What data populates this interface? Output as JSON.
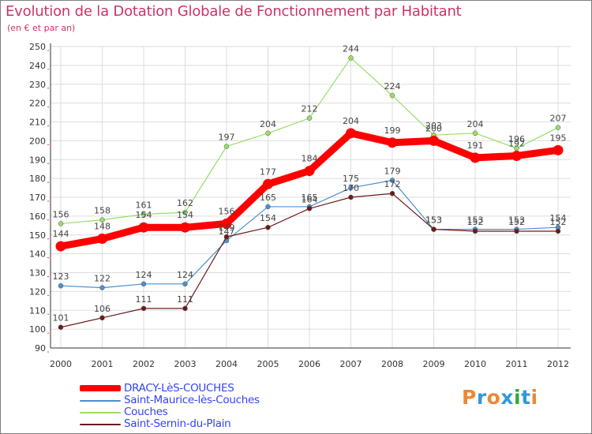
{
  "title": "Evolution de la Dotation Globale de Fonctionnement par Habitant",
  "subtitle": "(en € et par an)",
  "logo": {
    "text": "Proxiti",
    "colors": [
      "#ee8833",
      "#3399dd",
      "#ee8833",
      "#3399dd",
      "#33aa33",
      "#3399dd",
      "#ee8833"
    ]
  },
  "chart_data": {
    "type": "line",
    "title": "Evolution de la Dotation Globale de Fonctionnement par Habitant",
    "subtitle": "(en € et par an)",
    "xlabel": "",
    "ylabel": "",
    "categories": [
      "2000",
      "2001",
      "2002",
      "2003",
      "2004",
      "2005",
      "2006",
      "2007",
      "2008",
      "2009",
      "2010",
      "2011",
      "2012"
    ],
    "ylim": [
      90,
      250
    ],
    "yticks": [
      90,
      100,
      110,
      120,
      130,
      140,
      150,
      160,
      170,
      180,
      190,
      200,
      210,
      220,
      230,
      240,
      250
    ],
    "grid": true,
    "legend_position": "bottom-left",
    "series": [
      {
        "name": "DRACY-LèS-COUCHES",
        "color": "#ff0000",
        "bold": true,
        "values": [
          144,
          148,
          154,
          154,
          156,
          177,
          184,
          204,
          199,
          200,
          191,
          192,
          195
        ],
        "labels": [
          "144",
          "148",
          "154",
          "154",
          "156",
          "177",
          "184",
          "204",
          "199",
          "200",
          "191",
          "192",
          "195"
        ]
      },
      {
        "name": "Saint-Maurice-lès-Couches",
        "color": "#4d8fcc",
        "bold": false,
        "values": [
          123,
          122,
          124,
          124,
          147,
          165,
          165,
          175,
          179,
          153,
          153,
          153,
          154
        ],
        "labels": [
          "123",
          "122",
          "124",
          "124",
          "147",
          "165",
          "165",
          "175",
          "179",
          "153",
          "153",
          "153",
          "154"
        ]
      },
      {
        "name": "Couches",
        "color": "#99dd66",
        "bold": false,
        "values": [
          156,
          158,
          161,
          162,
          197,
          204,
          212,
          244,
          224,
          203,
          204,
          196,
          207
        ],
        "labels": [
          "156",
          "158",
          "161",
          "162",
          "197",
          "204",
          "212",
          "244",
          "224",
          "203",
          "204",
          "196",
          "207"
        ]
      },
      {
        "name": "Saint-Sernin-du-Plain",
        "color": "#6b1a1a",
        "bold": false,
        "values": [
          101,
          106,
          111,
          111,
          149,
          154,
          164,
          170,
          172,
          153,
          152,
          152,
          152
        ],
        "labels": [
          "101",
          "106",
          "111",
          "111",
          "149",
          "154",
          "164",
          "170",
          "172",
          "153",
          "152",
          "152",
          "152"
        ]
      }
    ]
  }
}
